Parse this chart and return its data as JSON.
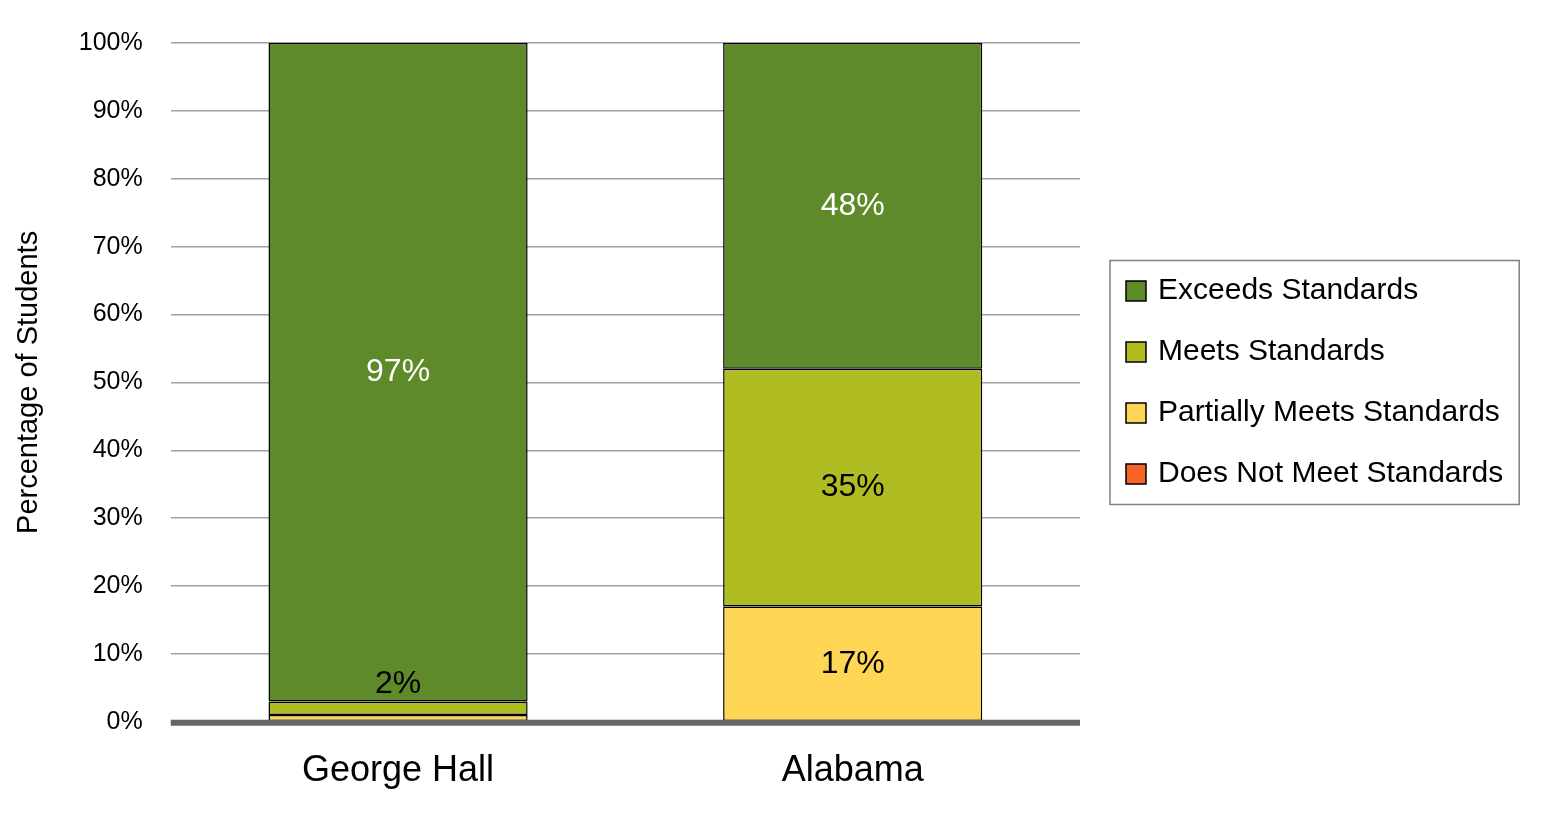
{
  "chart_data": {
    "type": "bar",
    "stacked": true,
    "ylabel": "Percentage of Students",
    "categories": [
      "George Hall",
      "Alabama"
    ],
    "series": [
      {
        "name": "Does Not Meet Standards",
        "color": "#f26522",
        "values": [
          0,
          0
        ],
        "value_labels": [
          null,
          null
        ]
      },
      {
        "name": "Partially Meets Standards",
        "color": "#ffd555",
        "values": [
          1,
          17
        ],
        "value_labels": [
          null,
          "17%"
        ]
      },
      {
        "name": "Meets Standards",
        "color": "#afbd22",
        "values": [
          2,
          35
        ],
        "value_labels": [
          "2%",
          "35%"
        ]
      },
      {
        "name": "Exceeds Standards",
        "color": "#5e8a2a",
        "values": [
          97,
          48
        ],
        "value_labels": [
          "97%",
          "48%"
        ]
      }
    ],
    "ylim": [
      0,
      100
    ],
    "yticks": [
      {
        "value": 0,
        "label": "0%"
      },
      {
        "value": 10,
        "label": "10%"
      },
      {
        "value": 20,
        "label": "20%"
      },
      {
        "value": 30,
        "label": "30%"
      },
      {
        "value": 40,
        "label": "40%"
      },
      {
        "value": 50,
        "label": "50%"
      },
      {
        "value": 60,
        "label": "60%"
      },
      {
        "value": 70,
        "label": "70%"
      },
      {
        "value": 80,
        "label": "80%"
      },
      {
        "value": 90,
        "label": "90%"
      },
      {
        "value": 100,
        "label": "100%"
      }
    ],
    "grid": "y",
    "legend": "right"
  }
}
